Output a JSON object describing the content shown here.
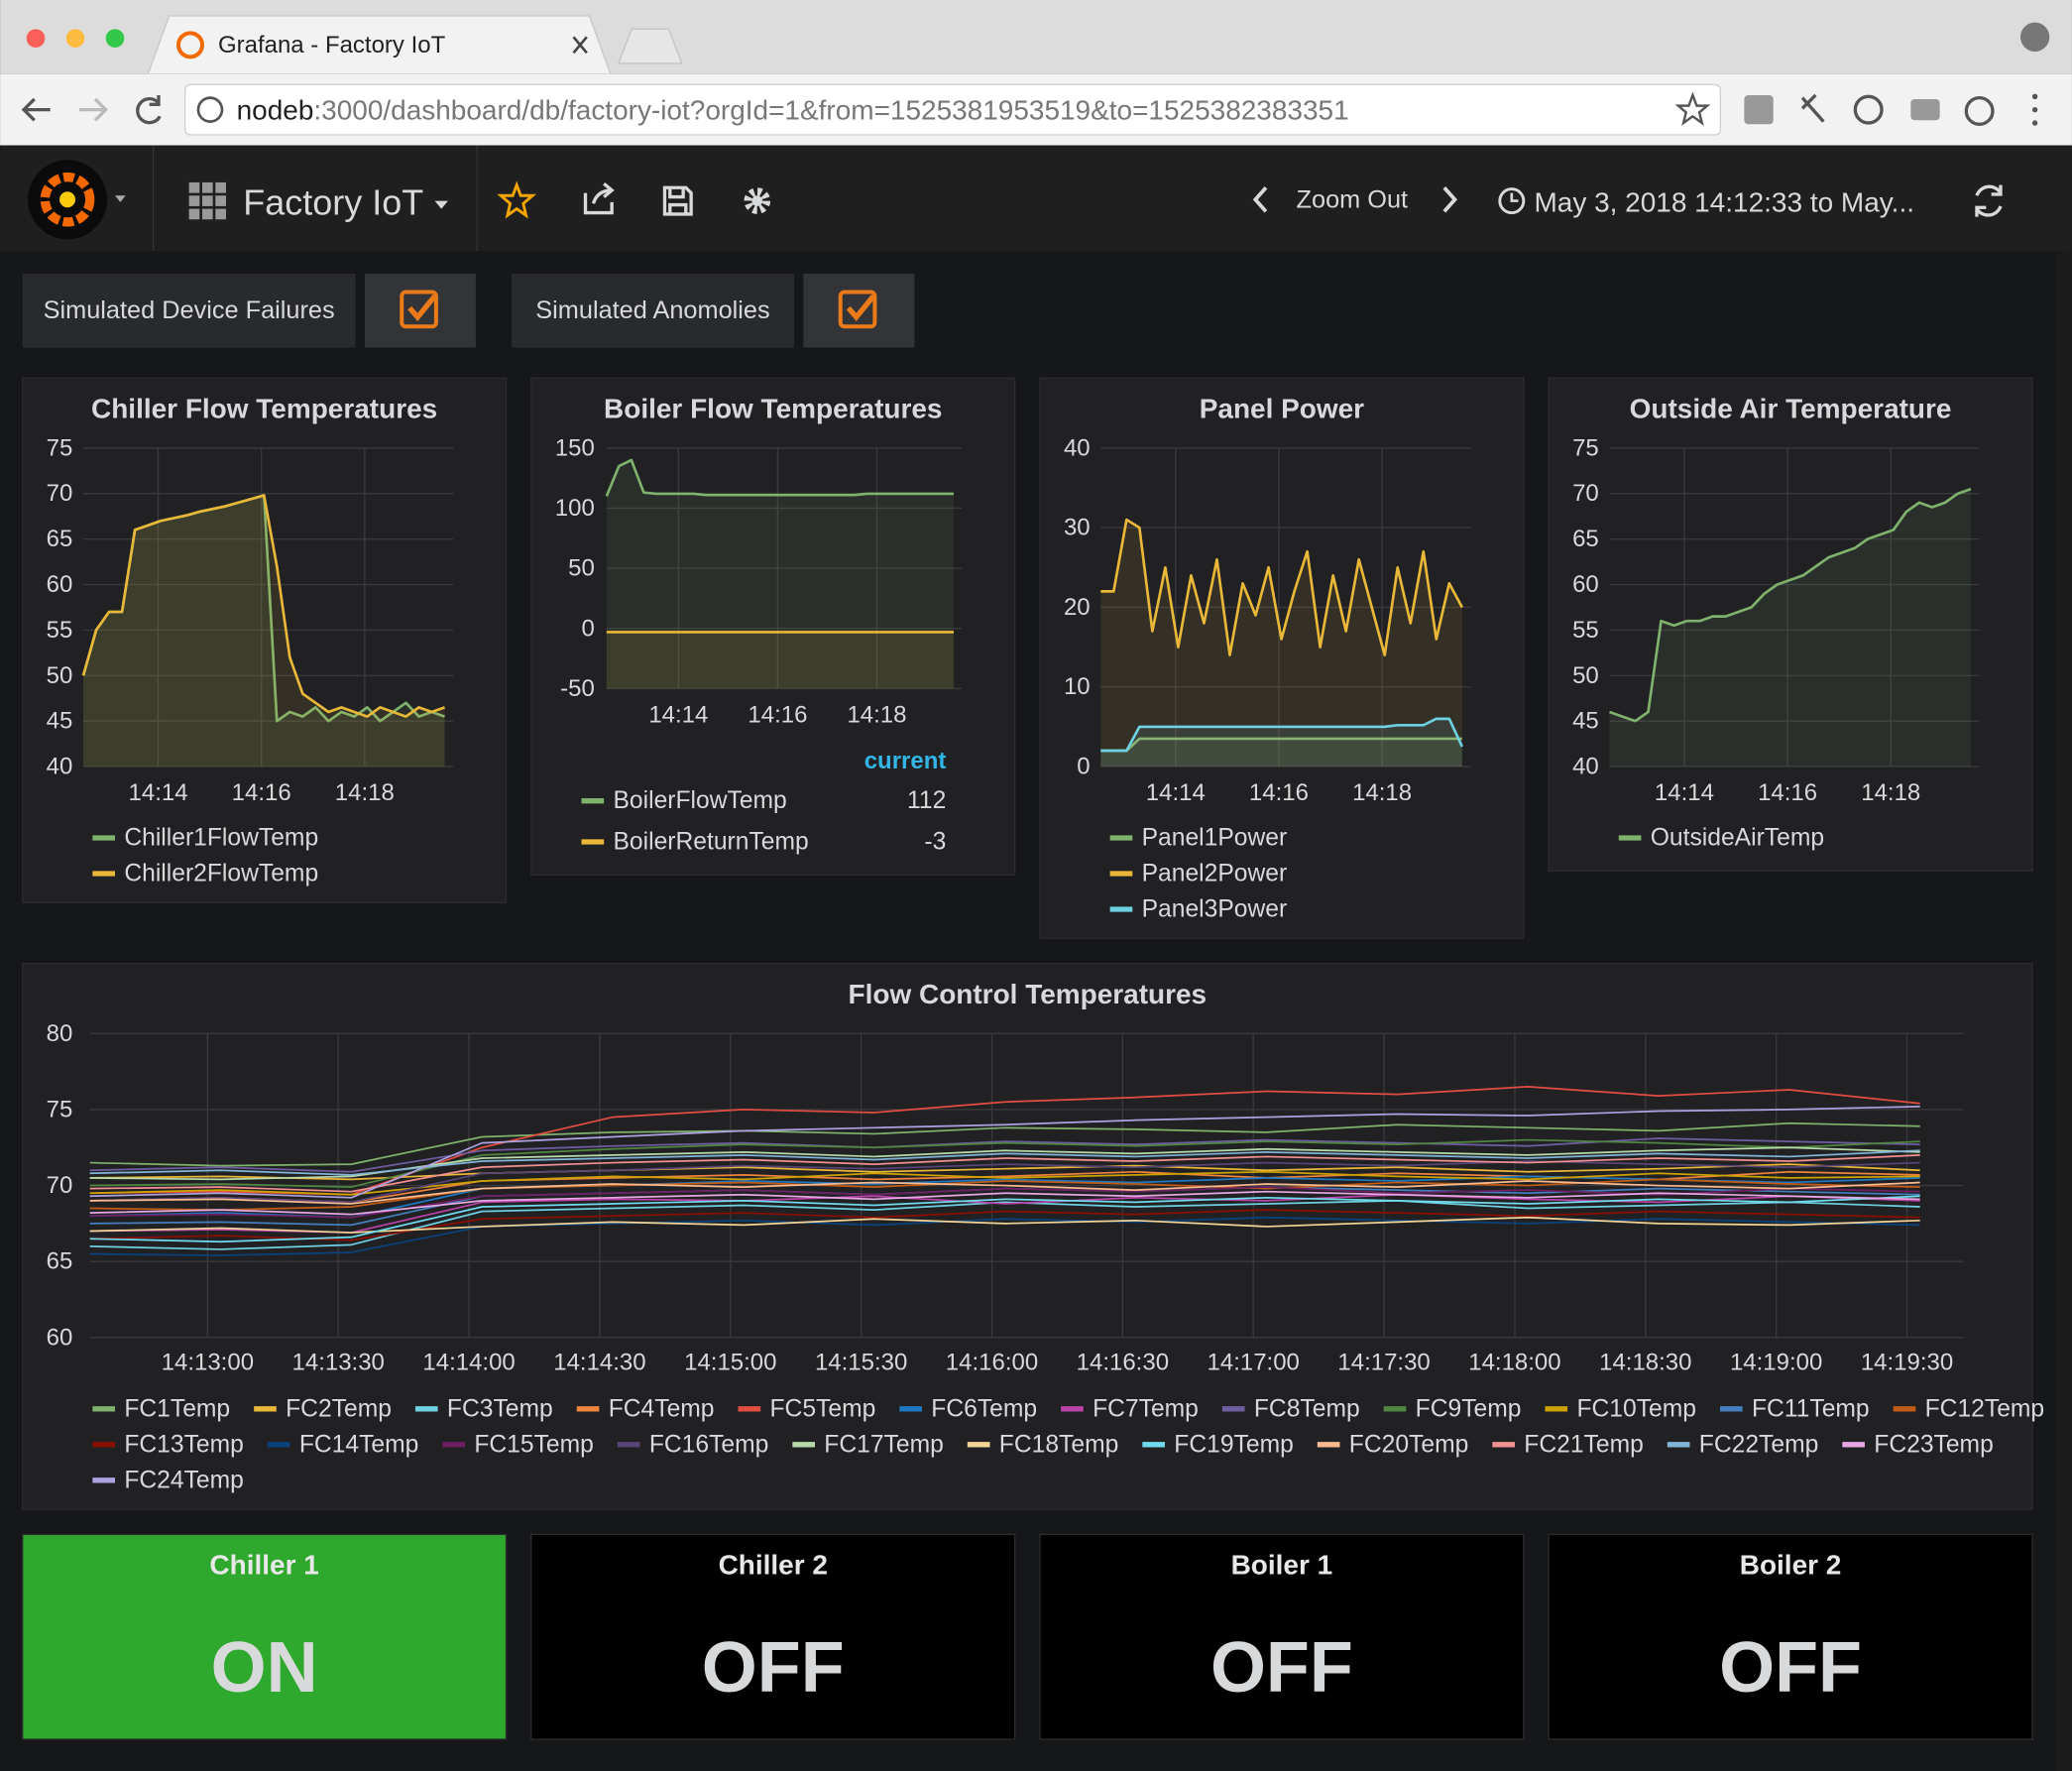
{
  "browser": {
    "tab_title": "Grafana - Factory IoT",
    "url_host": "nodeb",
    "url_path": ":3000/dashboard/db/factory-iot?orgId=1&from=1525381953519&to=1525382383351"
  },
  "navbar": {
    "dashboard_title": "Factory IoT",
    "zoom_out": "Zoom Out",
    "time_range": "May 3, 2018 14:12:33 to May..."
  },
  "variables": [
    {
      "label": "Simulated Device Failures",
      "checked": true
    },
    {
      "label": "Simulated Anomolies",
      "checked": true
    }
  ],
  "chart_data": [
    {
      "type": "line",
      "title": "Chiller Flow Temperatures",
      "fill": true,
      "grid": true,
      "x": [
        "14:12:33",
        "14:12:48",
        "14:13:03",
        "14:13:18",
        "14:13:33",
        "14:13:48",
        "14:14:03",
        "14:14:18",
        "14:14:33",
        "14:14:48",
        "14:15:03",
        "14:15:18",
        "14:15:33",
        "14:15:48",
        "14:16:03",
        "14:16:18",
        "14:16:33",
        "14:16:48",
        "14:17:03",
        "14:17:18",
        "14:17:33",
        "14:17:48",
        "14:18:03",
        "14:18:18",
        "14:18:33",
        "14:18:48",
        "14:19:03",
        "14:19:18",
        "14:19:33"
      ],
      "xlim": [
        "14:12:33",
        "14:19:43"
      ],
      "xticks": [
        "14:14",
        "14:16",
        "14:18"
      ],
      "ylim": [
        40,
        75
      ],
      "yticks": [
        40,
        45,
        50,
        55,
        60,
        65,
        70,
        75
      ],
      "series": [
        {
          "name": "Chiller1FlowTemp",
          "color": "#7eb26d",
          "values": [
            50,
            55,
            57,
            57,
            66,
            66.5,
            67,
            67.3,
            67.6,
            68,
            68.3,
            68.6,
            69,
            69.4,
            69.8,
            45,
            46,
            45.5,
            46.5,
            45,
            46,
            45.5,
            46.5,
            45,
            46,
            47,
            45.5,
            46,
            45.5
          ]
        },
        {
          "name": "Chiller2FlowTemp",
          "color": "#eab839",
          "values": [
            50,
            55,
            57,
            57,
            66,
            66.5,
            67,
            67.3,
            67.6,
            68,
            68.3,
            68.6,
            69,
            69.4,
            69.8,
            62,
            52,
            48,
            47,
            46,
            46.5,
            46,
            45.5,
            46.5,
            46,
            45.5,
            46.5,
            46,
            46.5
          ]
        }
      ]
    },
    {
      "type": "line",
      "title": "Boiler Flow Temperatures",
      "fill": true,
      "grid": true,
      "legend_header": "current",
      "x": [
        "14:12:33",
        "14:12:48",
        "14:13:03",
        "14:13:18",
        "14:13:33",
        "14:13:48",
        "14:14:03",
        "14:14:18",
        "14:14:33",
        "14:14:48",
        "14:15:03",
        "14:15:18",
        "14:15:33",
        "14:15:48",
        "14:16:03",
        "14:16:18",
        "14:16:33",
        "14:16:48",
        "14:17:03",
        "14:17:18",
        "14:17:33",
        "14:17:48",
        "14:18:03",
        "14:18:18",
        "14:18:33",
        "14:18:48",
        "14:19:03",
        "14:19:18",
        "14:19:33"
      ],
      "xlim": [
        "14:12:33",
        "14:19:43"
      ],
      "xticks": [
        "14:14",
        "14:16",
        "14:18"
      ],
      "ylim": [
        -50,
        150
      ],
      "yticks": [
        -50,
        0,
        50,
        100,
        150
      ],
      "series": [
        {
          "name": "BoilerFlowTemp",
          "color": "#7eb26d",
          "values": [
            110,
            135,
            140,
            113,
            112,
            112,
            112,
            112,
            111,
            111,
            111,
            111,
            111,
            111,
            111,
            111,
            111,
            111,
            111,
            111,
            111,
            112,
            112,
            112,
            112,
            112,
            112,
            112,
            112
          ]
        },
        {
          "name": "BoilerReturnTemp",
          "color": "#eab839",
          "values": [
            -3,
            -3,
            -3,
            -3,
            -3,
            -3,
            -3,
            -3,
            -3,
            -3,
            -3,
            -3,
            -3,
            -3,
            -3,
            -3,
            -3,
            -3,
            -3,
            -3,
            -3,
            -3,
            -3,
            -3,
            -3,
            -3,
            -3,
            -3,
            -3
          ]
        }
      ]
    },
    {
      "type": "line",
      "title": "Panel Power",
      "fill": true,
      "grid": true,
      "x": [
        "14:12:33",
        "14:12:48",
        "14:13:03",
        "14:13:18",
        "14:13:33",
        "14:13:48",
        "14:14:03",
        "14:14:18",
        "14:14:33",
        "14:14:48",
        "14:15:03",
        "14:15:18",
        "14:15:33",
        "14:15:48",
        "14:16:03",
        "14:16:18",
        "14:16:33",
        "14:16:48",
        "14:17:03",
        "14:17:18",
        "14:17:33",
        "14:17:48",
        "14:18:03",
        "14:18:18",
        "14:18:33",
        "14:18:48",
        "14:19:03",
        "14:19:18",
        "14:19:33"
      ],
      "xlim": [
        "14:12:33",
        "14:19:43"
      ],
      "xticks": [
        "14:14",
        "14:16",
        "14:18"
      ],
      "ylim": [
        0,
        40
      ],
      "yticks": [
        0,
        10,
        20,
        30,
        40
      ],
      "series": [
        {
          "name": "Panel1Power",
          "color": "#7eb26d",
          "values": [
            2,
            2,
            2,
            3.5,
            3.5,
            3.5,
            3.5,
            3.5,
            3.5,
            3.5,
            3.5,
            3.5,
            3.5,
            3.5,
            3.5,
            3.5,
            3.5,
            3.5,
            3.5,
            3.5,
            3.5,
            3.5,
            3.5,
            3.5,
            3.5,
            3.5,
            3.5,
            3.5,
            3.5
          ]
        },
        {
          "name": "Panel2Power",
          "color": "#eab839",
          "values": [
            22,
            22,
            31,
            30,
            17,
            25,
            15,
            24,
            18,
            26,
            14,
            23,
            19,
            25,
            16,
            22,
            27,
            15,
            24,
            17,
            26,
            20,
            14,
            25,
            18,
            27,
            16,
            23,
            20
          ]
        },
        {
          "name": "Panel3Power",
          "color": "#6ed0e0",
          "values": [
            2,
            2,
            2,
            5,
            5,
            5,
            5,
            5,
            5,
            5,
            5,
            5,
            5,
            5,
            5,
            5,
            5,
            5,
            5,
            5,
            5,
            5,
            5,
            5.2,
            5.2,
            5.2,
            6,
            6,
            2.5
          ]
        }
      ]
    },
    {
      "type": "line",
      "title": "Outside Air Temperature",
      "fill": true,
      "grid": true,
      "x": [
        "14:12:33",
        "14:12:48",
        "14:13:03",
        "14:13:18",
        "14:13:33",
        "14:13:48",
        "14:14:03",
        "14:14:18",
        "14:14:33",
        "14:14:48",
        "14:15:03",
        "14:15:18",
        "14:15:33",
        "14:15:48",
        "14:16:03",
        "14:16:18",
        "14:16:33",
        "14:16:48",
        "14:17:03",
        "14:17:18",
        "14:17:33",
        "14:17:48",
        "14:18:03",
        "14:18:18",
        "14:18:33",
        "14:18:48",
        "14:19:03",
        "14:19:18",
        "14:19:33"
      ],
      "xlim": [
        "14:12:33",
        "14:19:43"
      ],
      "xticks": [
        "14:14",
        "14:16",
        "14:18"
      ],
      "ylim": [
        40,
        75
      ],
      "yticks": [
        40,
        45,
        50,
        55,
        60,
        65,
        70,
        75
      ],
      "series": [
        {
          "name": "OutsideAirTemp",
          "color": "#7eb26d",
          "values": [
            46,
            45.5,
            45,
            46,
            56,
            55.5,
            56,
            56,
            56.5,
            56.5,
            57,
            57.5,
            59,
            60,
            60.5,
            61,
            62,
            63,
            63.5,
            64,
            65,
            65.5,
            66,
            68,
            69,
            68.5,
            69,
            70,
            70.5
          ]
        }
      ]
    },
    {
      "type": "line",
      "title": "Flow Control Temperatures",
      "fill": false,
      "grid": true,
      "x": [
        "14:12:33",
        "14:13:03",
        "14:13:33",
        "14:14:03",
        "14:14:33",
        "14:15:03",
        "14:15:33",
        "14:16:03",
        "14:16:33",
        "14:17:03",
        "14:17:33",
        "14:18:03",
        "14:18:33",
        "14:19:03",
        "14:19:33"
      ],
      "xlim": [
        "14:12:33",
        "14:19:43"
      ],
      "xticks": [
        "14:13:00",
        "14:13:30",
        "14:14:00",
        "14:14:30",
        "14:15:00",
        "14:15:30",
        "14:16:00",
        "14:16:30",
        "14:17:00",
        "14:17:30",
        "14:18:00",
        "14:18:30",
        "14:19:00",
        "14:19:30"
      ],
      "ylim": [
        60,
        80
      ],
      "yticks": [
        60,
        65,
        70,
        75,
        80
      ],
      "series": [
        {
          "name": "FC1Temp",
          "color": "#7eb26d",
          "values": [
            71.5,
            71.3,
            71.4,
            73.2,
            73.5,
            73.6,
            73.4,
            73.8,
            73.7,
            73.5,
            74,
            73.8,
            73.6,
            74.1,
            73.9
          ]
        },
        {
          "name": "FC2Temp",
          "color": "#eab839",
          "values": [
            70.5,
            70.6,
            70.4,
            70.8,
            71,
            71.2,
            70.9,
            71.1,
            71.3,
            71,
            71.2,
            70.9,
            71.1,
            71.4,
            71
          ]
        },
        {
          "name": "FC3Temp",
          "color": "#6ed0e0",
          "values": [
            66,
            65.8,
            66.1,
            68.3,
            68.5,
            68.7,
            68.4,
            68.9,
            68.6,
            68.8,
            69,
            68.5,
            68.7,
            68.9,
            68.6
          ]
        },
        {
          "name": "FC4Temp",
          "color": "#ef843c",
          "values": [
            69,
            69.2,
            68.9,
            70.3,
            70.5,
            70.7,
            70.4,
            70.6,
            70.9,
            70.5,
            70.8,
            70.6,
            70.4,
            70.9,
            70.7
          ]
        },
        {
          "name": "FC5Temp",
          "color": "#e24d42",
          "values": [
            69.5,
            69.6,
            69.4,
            72.5,
            74.5,
            75,
            74.8,
            75.5,
            75.8,
            76.2,
            76,
            76.5,
            75.9,
            76.3,
            75.4
          ]
        },
        {
          "name": "FC6Temp",
          "color": "#1f78c1",
          "values": [
            68,
            68.2,
            67.9,
            69.8,
            70,
            70.3,
            70.1,
            70.4,
            70.2,
            70.5,
            70.3,
            70.6,
            70.4,
            70.2,
            70.5
          ]
        },
        {
          "name": "FC7Temp",
          "color": "#ba43a9",
          "values": [
            67,
            67.1,
            66.9,
            68.9,
            69.1,
            69,
            69.3,
            68.8,
            69.2,
            69,
            69.4,
            69.1,
            68.9,
            69.3,
            69
          ]
        },
        {
          "name": "FC8Temp",
          "color": "#705da0",
          "values": [
            71,
            71.2,
            70.9,
            72.3,
            72.6,
            72.8,
            72.5,
            72.9,
            72.7,
            73,
            72.8,
            72.6,
            73.1,
            72.9,
            72.7
          ]
        },
        {
          "name": "FC9Temp",
          "color": "#508642",
          "values": [
            70,
            70.1,
            69.9,
            72,
            72.4,
            72.7,
            72.5,
            72.8,
            72.6,
            72.9,
            72.7,
            73,
            72.8,
            72.5,
            72.9
          ]
        },
        {
          "name": "FC10Temp",
          "color": "#cca300",
          "values": [
            69.5,
            69.7,
            69.4,
            70.3,
            70.6,
            70.4,
            70.8,
            70.5,
            70.7,
            70.9,
            70.6,
            70.4,
            70.8,
            70.5,
            70.6
          ]
        },
        {
          "name": "FC11Temp",
          "color": "#447ebc",
          "values": [
            67.5,
            67.6,
            67.4,
            69.3,
            69.5,
            69.7,
            69.4,
            69.8,
            69.6,
            69.9,
            69.7,
            69.5,
            69.8,
            69.6,
            69.4
          ]
        },
        {
          "name": "FC12Temp",
          "color": "#c15c17",
          "values": [
            68.5,
            68.4,
            68.6,
            69.8,
            70,
            70.2,
            69.9,
            70.3,
            70.1,
            69.8,
            70.2,
            70,
            70.4,
            70.1,
            69.9
          ]
        },
        {
          "name": "FC13Temp",
          "color": "#890f02",
          "values": [
            66.5,
            66.7,
            66.4,
            67.8,
            68,
            68.2,
            67.9,
            68.3,
            68.1,
            68.4,
            68.2,
            68,
            68.3,
            68.1,
            67.9
          ]
        },
        {
          "name": "FC14Temp",
          "color": "#0a437c",
          "values": [
            65.5,
            65.4,
            65.6,
            67.3,
            67.5,
            67.7,
            67.4,
            67.8,
            67.6,
            67.9,
            67.7,
            67.5,
            67.8,
            67.6,
            67.4
          ]
        },
        {
          "name": "FC15Temp",
          "color": "#6d1f62",
          "values": [
            68,
            68.1,
            67.9,
            69.3,
            69.5,
            69.7,
            69.4,
            69.8,
            69.6,
            69.9,
            69.5,
            69.7,
            69.4,
            69.8,
            69.6
          ]
        },
        {
          "name": "FC16Temp",
          "color": "#584477",
          "values": [
            69,
            69.2,
            68.9,
            70.8,
            71,
            71.3,
            71.1,
            71.4,
            71.2,
            71.5,
            71.3,
            71.6,
            71.4,
            71.2,
            71.5
          ]
        },
        {
          "name": "FC17Temp",
          "color": "#b7dbab",
          "values": [
            70.5,
            70.4,
            70.6,
            71.8,
            72,
            72.2,
            71.9,
            72.3,
            72.1,
            72.4,
            72.2,
            72,
            72.3,
            72.5,
            72.2
          ]
        },
        {
          "name": "FC18Temp",
          "color": "#f4d598",
          "values": [
            67,
            67.2,
            66.9,
            67.3,
            67.6,
            67.4,
            67.8,
            67.5,
            67.7,
            67.3,
            67.6,
            67.9,
            67.5,
            67.4,
            67.7
          ]
        },
        {
          "name": "FC19Temp",
          "color": "#70dbed",
          "values": [
            66.5,
            66.3,
            66.6,
            68.6,
            68.8,
            69,
            68.7,
            69.1,
            68.9,
            69.2,
            69,
            68.8,
            69.1,
            68.9,
            69.3
          ]
        },
        {
          "name": "FC20Temp",
          "color": "#f9ba8f",
          "values": [
            69,
            69.1,
            68.8,
            69.8,
            70.1,
            69.9,
            70.2,
            70,
            69.7,
            70.1,
            69.9,
            70.3,
            70,
            69.8,
            70.2
          ]
        },
        {
          "name": "FC21Temp",
          "color": "#f29191",
          "values": [
            69.8,
            69.9,
            69.6,
            71.2,
            71.5,
            71.7,
            71.4,
            71.8,
            71.6,
            71.9,
            71.7,
            71.5,
            71.8,
            71.6,
            72
          ]
        },
        {
          "name": "FC22Temp",
          "color": "#82b5d8",
          "values": [
            70.8,
            71,
            70.7,
            71.6,
            71.8,
            72,
            71.7,
            72.1,
            71.9,
            72.2,
            72,
            71.8,
            72.1,
            71.9,
            72.3
          ]
        },
        {
          "name": "FC23Temp",
          "color": "#e5a8e2",
          "values": [
            68.2,
            68.4,
            68.1,
            69,
            69.2,
            69.4,
            69.1,
            69.5,
            69.3,
            69.6,
            69.4,
            69.2,
            69.5,
            69.3,
            69.1
          ]
        },
        {
          "name": "FC24Temp",
          "color": "#aea2e0",
          "values": [
            69.3,
            69.5,
            69.2,
            72.8,
            73.2,
            73.6,
            73.8,
            74,
            74.3,
            74.5,
            74.7,
            74.6,
            74.9,
            75,
            75.2
          ]
        }
      ]
    }
  ],
  "status_panels": [
    {
      "title": "Chiller 1",
      "value": "ON",
      "color": "#2fa82e"
    },
    {
      "title": "Chiller 2",
      "value": "OFF",
      "color": "#000000"
    },
    {
      "title": "Boiler 1",
      "value": "OFF",
      "color": "#000000"
    },
    {
      "title": "Boiler 2",
      "value": "OFF",
      "color": "#000000"
    }
  ]
}
